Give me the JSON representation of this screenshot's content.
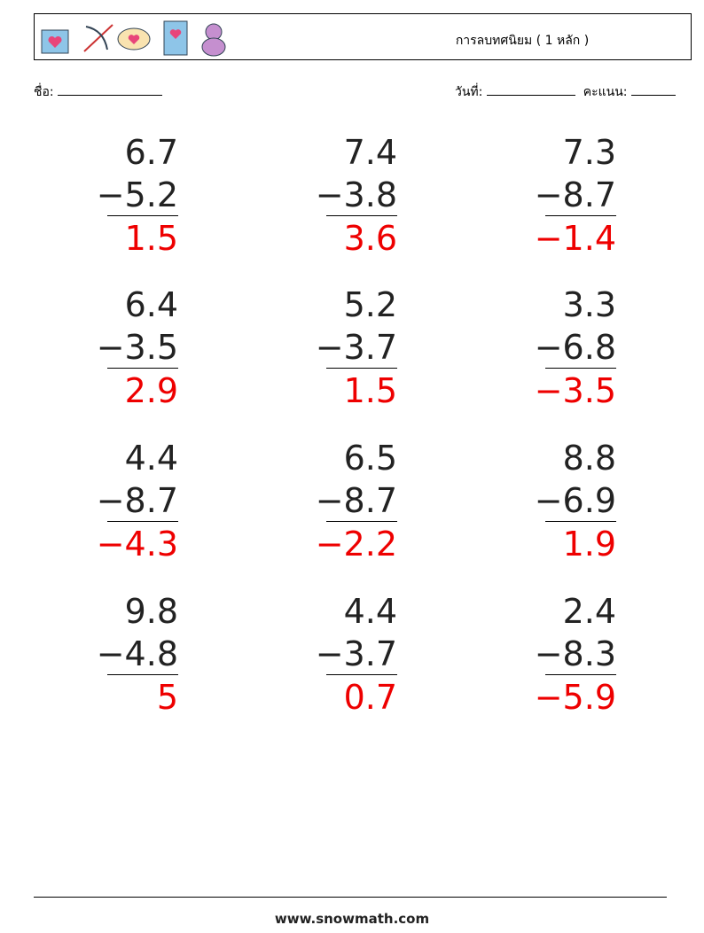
{
  "header": {
    "title": "การลบทศนิยม ( 1 หลัก )"
  },
  "fields": {
    "name_label": "ชื่อ:",
    "date_label": "วันที่:",
    "score_label": "คะแนน:"
  },
  "problems": [
    [
      {
        "top": "6.7",
        "bottom": "−5.2",
        "answer": "1.5"
      },
      {
        "top": "7.4",
        "bottom": "−3.8",
        "answer": "3.6"
      },
      {
        "top": "7.3",
        "bottom": "−8.7",
        "answer": "−1.4"
      }
    ],
    [
      {
        "top": "6.4",
        "bottom": "−3.5",
        "answer": "2.9"
      },
      {
        "top": "5.2",
        "bottom": "−3.7",
        "answer": "1.5"
      },
      {
        "top": "3.3",
        "bottom": "−6.8",
        "answer": "−3.5"
      }
    ],
    [
      {
        "top": "4.4",
        "bottom": "−8.7",
        "answer": "−4.3"
      },
      {
        "top": "6.5",
        "bottom": "−8.7",
        "answer": "−2.2"
      },
      {
        "top": "8.8",
        "bottom": "−6.9",
        "answer": "1.9"
      }
    ],
    [
      {
        "top": "9.8",
        "bottom": "−4.8",
        "answer": "5"
      },
      {
        "top": "4.4",
        "bottom": "−3.7",
        "answer": "0.7"
      },
      {
        "top": "2.4",
        "bottom": "−8.3",
        "answer": "−5.9"
      }
    ]
  ],
  "footer": {
    "url": "www.snowmath.com"
  }
}
